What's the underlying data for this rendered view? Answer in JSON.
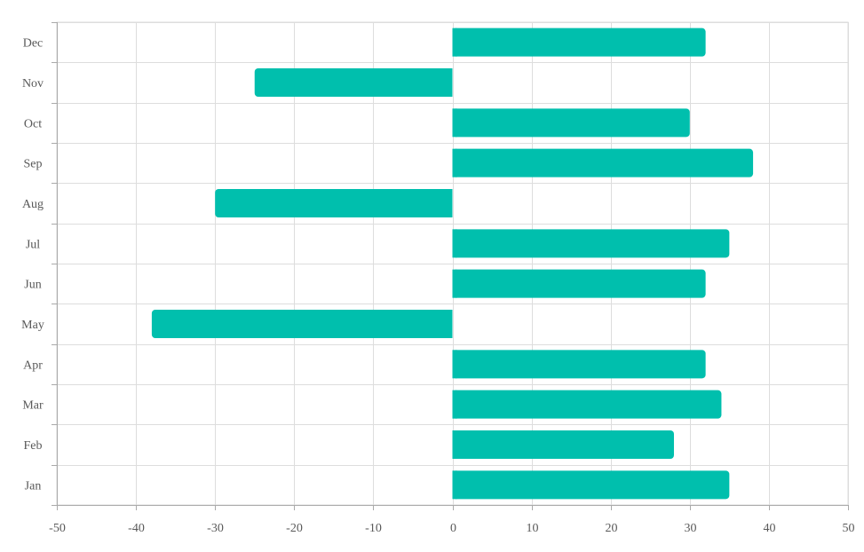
{
  "chart_data": {
    "type": "bar",
    "orientation": "horizontal",
    "title": "",
    "xlabel": "",
    "ylabel": "",
    "categories": [
      "Jan",
      "Feb",
      "Mar",
      "Apr",
      "May",
      "Jun",
      "Jul",
      "Aug",
      "Sep",
      "Oct",
      "Nov",
      "Dec"
    ],
    "values": [
      35,
      28,
      34,
      32,
      -38,
      32,
      35,
      -30,
      38,
      30,
      -25,
      32
    ],
    "xlim": [
      -50,
      50
    ],
    "x_ticks": [
      -50,
      -40,
      -30,
      -20,
      -10,
      0,
      10,
      20,
      30,
      40,
      50
    ],
    "grid": true,
    "colors": {
      "bar": "#00bfad",
      "grid": "#dddddd",
      "axis": "#aaaaaa",
      "tick_text": "#595959"
    }
  }
}
